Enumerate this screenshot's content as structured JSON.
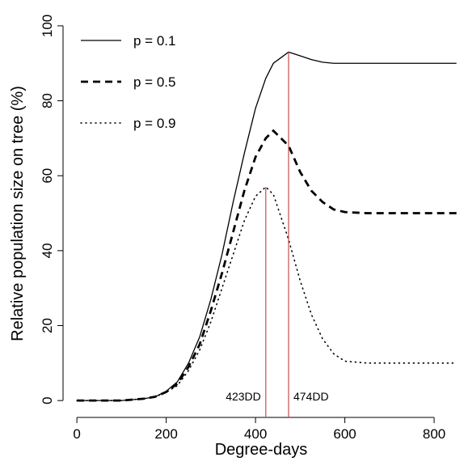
{
  "chart_data": {
    "type": "line",
    "x": [
      0,
      50,
      100,
      150,
      175,
      200,
      225,
      250,
      275,
      300,
      325,
      350,
      375,
      400,
      423,
      440,
      474,
      500,
      525,
      550,
      575,
      600,
      650,
      700,
      750,
      800,
      850
    ],
    "series": [
      {
        "name": "p = 0.1",
        "color": "#000000",
        "dash": "solid",
        "values": [
          0,
          0,
          0,
          0.5,
          1,
          2.5,
          5,
          10,
          17,
          27,
          39,
          53,
          66,
          78,
          86,
          90,
          93,
          92,
          91,
          90.3,
          90,
          90,
          90,
          90,
          90,
          90,
          90
        ]
      },
      {
        "name": "p = 0.5",
        "color": "#000000",
        "dash": "dashed",
        "values": [
          0,
          0,
          0,
          0.5,
          1,
          2.3,
          4.5,
          9,
          15,
          24,
          34,
          45,
          56,
          65,
          70,
          72,
          68,
          61,
          56,
          53,
          51,
          50.3,
          50,
          50,
          50,
          50,
          50
        ]
      },
      {
        "name": "p = 0.9",
        "color": "#000000",
        "dash": "dotted",
        "values": [
          0,
          0,
          0,
          0.5,
          1,
          2.2,
          4,
          8,
          13.5,
          21,
          30,
          39,
          48,
          54.5,
          57,
          55,
          43,
          32,
          23,
          16.5,
          12.5,
          10.5,
          10,
          10,
          10,
          10,
          10
        ]
      }
    ],
    "vlines": [
      {
        "x": 423,
        "y": 57,
        "label": "423DD",
        "color": "#c0504d"
      },
      {
        "x": 474,
        "y": 93,
        "label": "474DD",
        "color": "#c0504d"
      }
    ],
    "x_label": "Degree-days",
    "y_label": "Relative population size on tree (%)",
    "xlim": [
      -31,
      856
    ],
    "ylim": [
      -4.5,
      104.3
    ],
    "xticks": [
      0,
      200,
      400,
      600,
      800
    ],
    "yticks": [
      0,
      20,
      40,
      60,
      80,
      100
    ]
  }
}
